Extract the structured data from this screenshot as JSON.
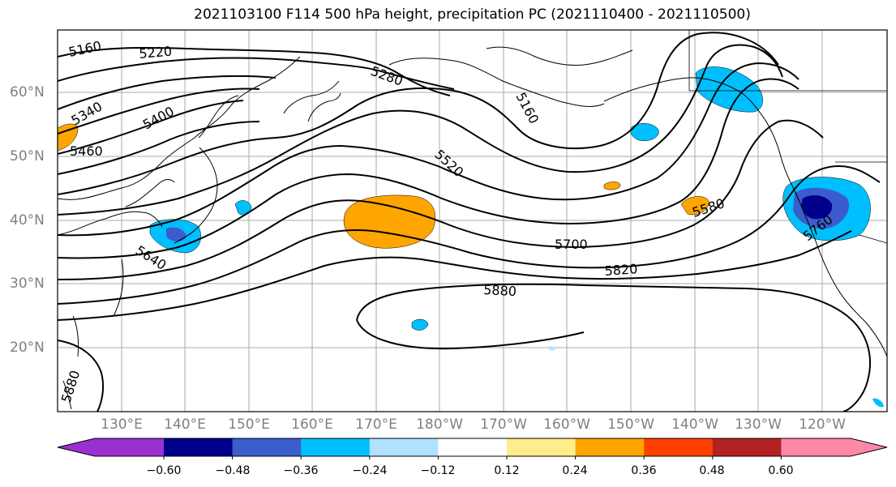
{
  "title": "2021103100 F114 500 hPa height, precipitation PC (2021110400 - 2021110500)",
  "lat_labels": [
    "60°N",
    "50°N",
    "40°N",
    "30°N",
    "20°N"
  ],
  "lon_labels": [
    "130°E",
    "140°E",
    "150°E",
    "160°E",
    "170°E",
    "180°W",
    "170°W",
    "160°W",
    "150°W",
    "140°W",
    "130°W",
    "120°W"
  ],
  "contour_labels": [
    "5160",
    "5220",
    "5280",
    "5340",
    "5400",
    "5460",
    "5520",
    "5580",
    "5640",
    "5700",
    "5820",
    "5880",
    "5160",
    "5880",
    "5760"
  ],
  "colorbar": {
    "ticks": [
      "−0.60",
      "−0.48",
      "−0.36",
      "−0.24",
      "−0.12",
      "0.12",
      "0.24",
      "0.36",
      "0.48",
      "0.60"
    ],
    "colors": [
      "#9a30d0",
      "#00008b",
      "#3a5ccc",
      "#00bfff",
      "#b0e2ff",
      "#ffffff",
      "#ffec8b",
      "#ffa500",
      "#ff4000",
      "#b22222",
      "#ff88aa"
    ]
  }
}
